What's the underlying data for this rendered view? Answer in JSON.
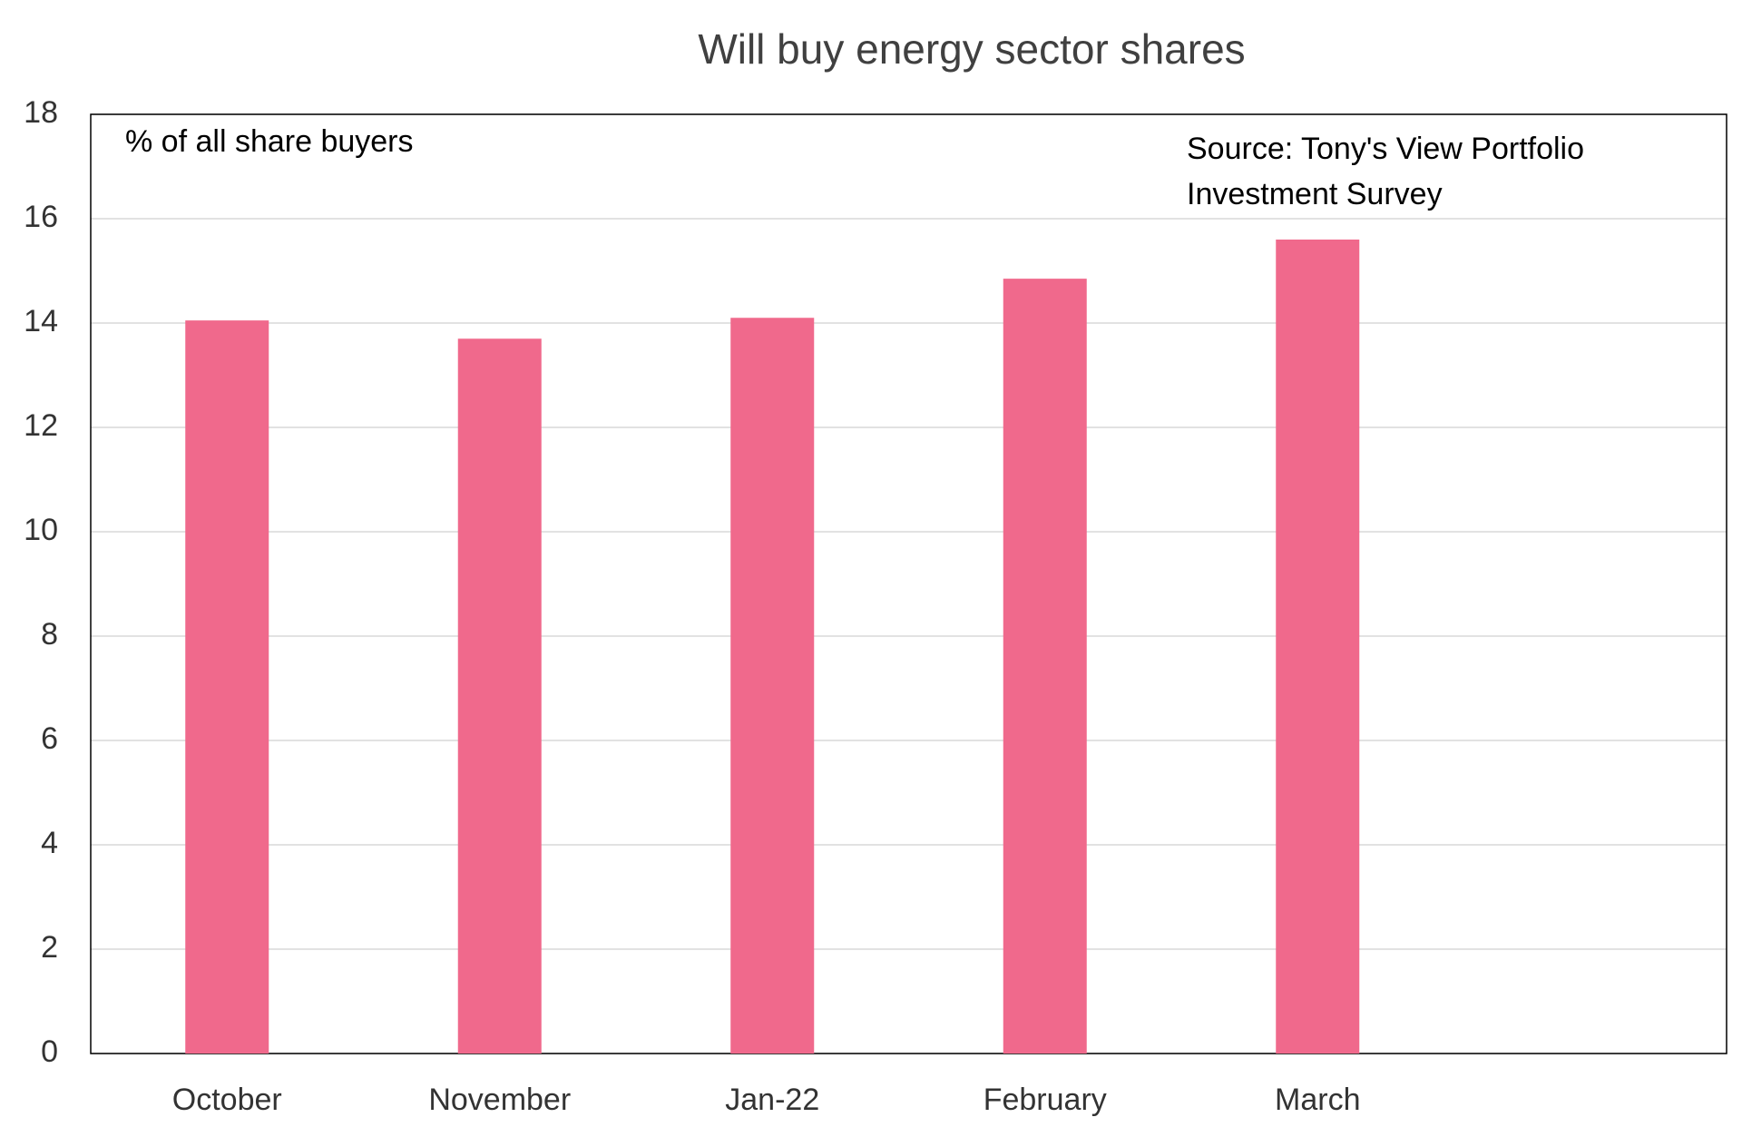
{
  "chart_data": {
    "type": "bar",
    "title": "Will buy energy sector shares",
    "annotations": [
      "% of all share buyers",
      "Source: Tony's View Portfolio",
      "Investment Survey"
    ],
    "categories": [
      "October",
      "November",
      "Jan-22",
      "February",
      "March",
      null
    ],
    "values": [
      14.05,
      13.7,
      14.1,
      14.85,
      15.6,
      null
    ],
    "color": "#f0698c",
    "ylim": [
      0,
      18
    ],
    "yticks": [
      0,
      2,
      4,
      6,
      8,
      10,
      12,
      14,
      16,
      18
    ],
    "grid": true
  }
}
